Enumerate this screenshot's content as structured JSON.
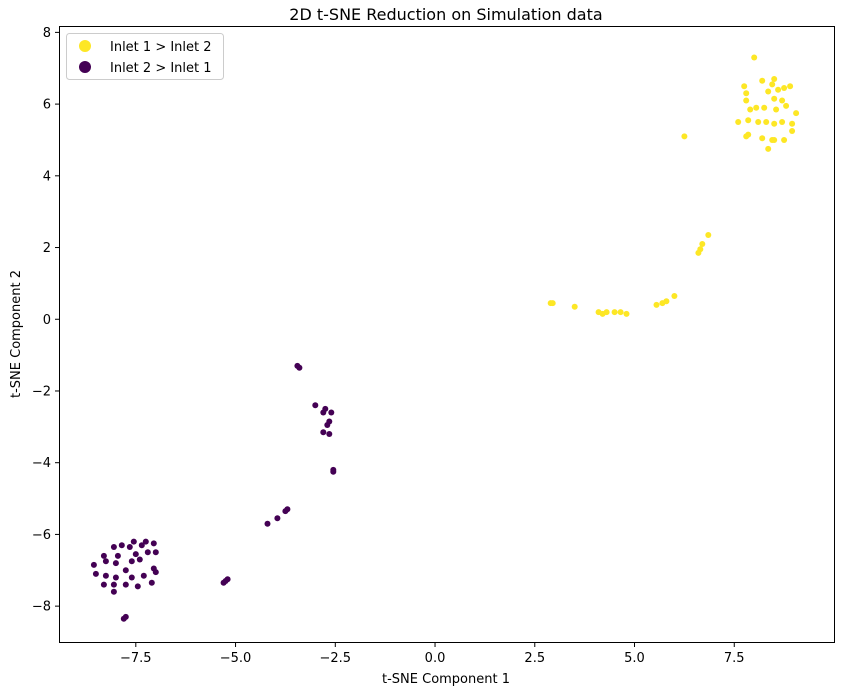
{
  "chart_data": {
    "type": "scatter",
    "title": "2D t-SNE Reduction on Simulation data",
    "xlabel": "t-SNE Component 1",
    "ylabel": "t-SNE Component 2",
    "xlim": [
      -9.4,
      10.0
    ],
    "ylim": [
      -9.0,
      8.15
    ],
    "xticks": [
      -7.5,
      -5.0,
      -2.5,
      0.0,
      2.5,
      5.0,
      7.5
    ],
    "xtick_labels": [
      "−7.5",
      "−5.0",
      "−2.5",
      "0.0",
      "2.5",
      "5.0",
      "7.5"
    ],
    "yticks": [
      -8,
      -6,
      -4,
      -2,
      0,
      2,
      4,
      6,
      8
    ],
    "ytick_labels": [
      "−8",
      "−6",
      "−4",
      "−2",
      "0",
      "2",
      "4",
      "6",
      "8"
    ],
    "grid": false,
    "legend_position": "top-left",
    "series": [
      {
        "name": "Inlet 1 > Inlet 2",
        "color": "#fde725",
        "points": [
          [
            8.0,
            7.3
          ],
          [
            7.75,
            6.5
          ],
          [
            7.8,
            6.3
          ],
          [
            7.8,
            6.1
          ],
          [
            8.2,
            6.65
          ],
          [
            8.45,
            6.55
          ],
          [
            8.5,
            6.7
          ],
          [
            8.6,
            6.4
          ],
          [
            8.75,
            6.45
          ],
          [
            8.9,
            6.5
          ],
          [
            8.35,
            6.35
          ],
          [
            8.5,
            6.15
          ],
          [
            8.7,
            6.1
          ],
          [
            8.05,
            5.9
          ],
          [
            8.25,
            5.9
          ],
          [
            8.55,
            5.85
          ],
          [
            8.8,
            5.95
          ],
          [
            7.9,
            5.85
          ],
          [
            9.05,
            5.75
          ],
          [
            7.6,
            5.5
          ],
          [
            7.85,
            5.55
          ],
          [
            8.1,
            5.5
          ],
          [
            8.3,
            5.5
          ],
          [
            8.5,
            5.45
          ],
          [
            8.7,
            5.5
          ],
          [
            8.95,
            5.45
          ],
          [
            7.85,
            5.15
          ],
          [
            7.8,
            5.1
          ],
          [
            8.2,
            5.05
          ],
          [
            8.45,
            5.0
          ],
          [
            8.5,
            5.0
          ],
          [
            8.75,
            5.0
          ],
          [
            8.95,
            5.25
          ],
          [
            8.35,
            4.75
          ],
          [
            6.25,
            5.1
          ],
          [
            6.85,
            2.35
          ],
          [
            6.7,
            2.1
          ],
          [
            6.65,
            1.95
          ],
          [
            6.6,
            1.85
          ],
          [
            6.0,
            0.65
          ],
          [
            5.8,
            0.5
          ],
          [
            5.7,
            0.45
          ],
          [
            5.55,
            0.4
          ],
          [
            4.8,
            0.15
          ],
          [
            4.65,
            0.2
          ],
          [
            4.5,
            0.2
          ],
          [
            4.3,
            0.2
          ],
          [
            4.2,
            0.15
          ],
          [
            4.1,
            0.2
          ],
          [
            3.5,
            0.35
          ],
          [
            2.9,
            0.45
          ],
          [
            2.95,
            0.45
          ]
        ]
      },
      {
        "name": "Inlet 2 > Inlet 1",
        "color": "#440154",
        "points": [
          [
            -7.25,
            -6.2
          ],
          [
            -7.55,
            -6.2
          ],
          [
            -7.05,
            -6.25
          ],
          [
            -7.85,
            -6.3
          ],
          [
            -7.65,
            -6.35
          ],
          [
            -7.35,
            -6.3
          ],
          [
            -8.05,
            -6.35
          ],
          [
            -8.3,
            -6.6
          ],
          [
            -7.95,
            -6.6
          ],
          [
            -7.5,
            -6.55
          ],
          [
            -7.2,
            -6.5
          ],
          [
            -7.0,
            -6.5
          ],
          [
            -8.55,
            -6.85
          ],
          [
            -8.25,
            -6.75
          ],
          [
            -8.0,
            -6.8
          ],
          [
            -7.6,
            -6.75
          ],
          [
            -7.4,
            -6.7
          ],
          [
            -7.05,
            -6.95
          ],
          [
            -7.75,
            -7.0
          ],
          [
            -7.0,
            -7.05
          ],
          [
            -8.5,
            -7.1
          ],
          [
            -8.25,
            -7.15
          ],
          [
            -8.0,
            -7.2
          ],
          [
            -7.6,
            -7.2
          ],
          [
            -7.3,
            -7.15
          ],
          [
            -8.3,
            -7.4
          ],
          [
            -8.05,
            -7.4
          ],
          [
            -7.75,
            -7.4
          ],
          [
            -7.45,
            -7.45
          ],
          [
            -7.1,
            -7.35
          ],
          [
            -8.05,
            -7.6
          ],
          [
            -7.75,
            -8.3
          ],
          [
            -7.8,
            -8.35
          ],
          [
            -5.2,
            -7.25
          ],
          [
            -5.25,
            -7.3
          ],
          [
            -5.3,
            -7.35
          ],
          [
            -4.2,
            -5.7
          ],
          [
            -3.95,
            -5.55
          ],
          [
            -3.75,
            -5.35
          ],
          [
            -3.7,
            -5.3
          ],
          [
            -3.45,
            -1.3
          ],
          [
            -3.4,
            -1.35
          ],
          [
            -3.0,
            -2.4
          ],
          [
            -2.75,
            -2.5
          ],
          [
            -2.6,
            -2.6
          ],
          [
            -2.8,
            -2.6
          ],
          [
            -2.65,
            -2.85
          ],
          [
            -2.7,
            -2.95
          ],
          [
            -2.8,
            -3.15
          ],
          [
            -2.65,
            -3.2
          ],
          [
            -2.55,
            -4.2
          ],
          [
            -2.55,
            -4.25
          ]
        ]
      }
    ]
  }
}
